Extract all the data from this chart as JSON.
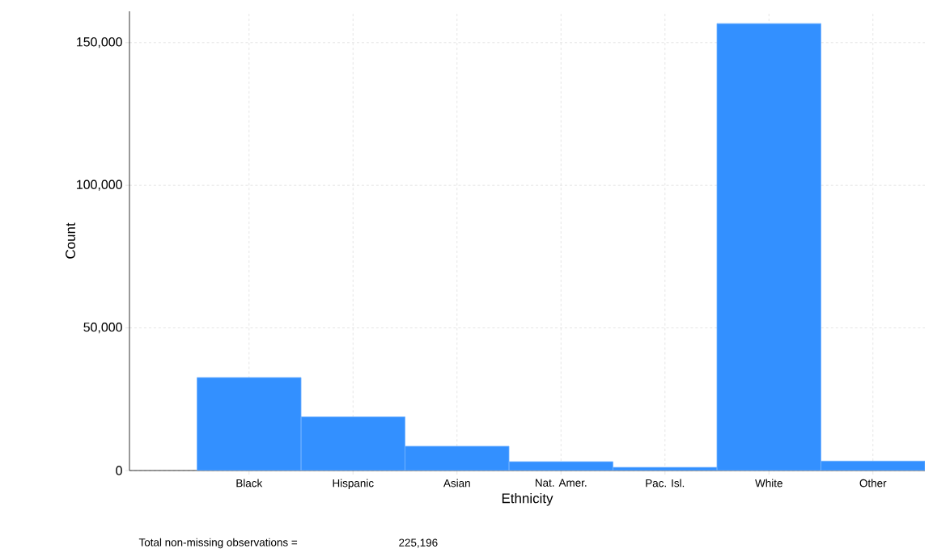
{
  "chart_data": {
    "type": "bar",
    "xlabel": "Ethnicity",
    "ylabel": "Count",
    "categories": [
      "Black",
      "Hispanic",
      "Asian",
      "Nat. Amer.",
      "Pac. Isl.",
      "White",
      "Other"
    ],
    "values": [
      32600,
      18800,
      8500,
      3100,
      1100,
      156700,
      3300
    ],
    "color": "#3390ff",
    "ylim": [
      0,
      161000
    ],
    "yticks": [
      0,
      {
        "value": 50000,
        "label": "50,000"
      },
      {
        "value": 100000,
        "label": "100,000"
      },
      {
        "value": 150000,
        "label": "150,000"
      }
    ],
    "grid": true,
    "annotations": [
      "Total non-missing observations =",
      "225,196"
    ]
  }
}
